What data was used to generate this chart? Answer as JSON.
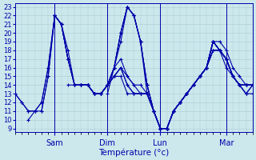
{
  "xlabel": "Température (°c)",
  "ylim": [
    9,
    23
  ],
  "xlim": [
    0,
    108
  ],
  "yticks": [
    9,
    10,
    11,
    12,
    13,
    14,
    15,
    16,
    17,
    18,
    19,
    20,
    21,
    22,
    23
  ],
  "day_positions": [
    18,
    42,
    66,
    96
  ],
  "day_labels": [
    "Sam",
    "Dim",
    "Lun",
    "Mar"
  ],
  "bg_color": "#cce8ec",
  "grid_color": "#a8cdd4",
  "line_color": "#0000aa",
  "series": [
    {
      "start": 0,
      "points": [
        [
          0,
          13
        ],
        [
          3,
          12
        ],
        [
          6,
          11
        ],
        [
          9,
          11
        ],
        [
          12,
          12
        ],
        [
          15,
          16
        ],
        [
          18,
          22
        ],
        [
          21,
          21
        ],
        [
          24,
          18
        ],
        [
          27,
          14
        ],
        [
          30,
          14
        ],
        [
          33,
          14
        ],
        [
          36,
          13
        ],
        [
          39,
          13
        ],
        [
          42,
          14
        ],
        [
          45,
          16
        ],
        [
          48,
          17
        ],
        [
          51,
          15
        ],
        [
          54,
          14
        ],
        [
          57,
          13
        ],
        [
          60,
          13
        ],
        [
          63,
          11
        ],
        [
          66,
          9
        ],
        [
          69,
          9
        ],
        [
          72,
          11
        ],
        [
          75,
          12
        ],
        [
          78,
          13
        ],
        [
          81,
          14
        ],
        [
          84,
          15
        ],
        [
          87,
          16
        ],
        [
          90,
          19
        ],
        [
          93,
          19
        ],
        [
          96,
          18
        ],
        [
          99,
          16
        ],
        [
          102,
          15
        ],
        [
          105,
          14
        ],
        [
          108,
          14
        ]
      ]
    },
    {
      "start": 0,
      "points": [
        [
          0,
          13
        ],
        [
          3,
          12
        ],
        [
          6,
          11
        ],
        [
          9,
          11
        ],
        [
          12,
          12
        ],
        [
          15,
          16
        ],
        [
          18,
          22
        ],
        [
          21,
          21
        ],
        [
          24,
          17
        ],
        [
          27,
          14
        ],
        [
          30,
          14
        ],
        [
          33,
          14
        ],
        [
          36,
          13
        ],
        [
          39,
          13
        ],
        [
          42,
          14
        ],
        [
          45,
          15
        ],
        [
          48,
          16
        ],
        [
          51,
          14
        ],
        [
          54,
          13
        ],
        [
          57,
          13
        ],
        [
          60,
          13
        ],
        [
          63,
          11
        ],
        [
          66,
          9
        ],
        [
          69,
          9
        ],
        [
          72,
          11
        ],
        [
          75,
          12
        ],
        [
          78,
          13
        ],
        [
          81,
          14
        ],
        [
          84,
          15
        ],
        [
          87,
          16
        ],
        [
          90,
          18
        ],
        [
          93,
          18
        ],
        [
          96,
          17
        ],
        [
          99,
          15
        ],
        [
          102,
          14
        ],
        [
          105,
          13
        ],
        [
          108,
          14
        ]
      ]
    },
    {
      "start": 6,
      "points": [
        [
          6,
          10
        ],
        [
          9,
          11
        ],
        [
          12,
          11
        ],
        [
          15,
          15
        ],
        [
          18,
          22
        ],
        [
          21,
          21
        ],
        [
          24,
          17
        ],
        [
          27,
          14
        ],
        [
          30,
          14
        ],
        [
          33,
          14
        ],
        [
          36,
          13
        ],
        [
          39,
          13
        ],
        [
          42,
          14
        ],
        [
          45,
          15
        ],
        [
          48,
          16
        ],
        [
          51,
          14
        ],
        [
          54,
          13
        ],
        [
          57,
          13
        ],
        [
          60,
          13
        ],
        [
          63,
          11
        ],
        [
          66,
          9
        ],
        [
          69,
          9
        ],
        [
          72,
          11
        ],
        [
          75,
          12
        ],
        [
          78,
          13
        ],
        [
          81,
          14
        ],
        [
          84,
          15
        ],
        [
          87,
          16
        ],
        [
          90,
          18
        ],
        [
          93,
          18
        ],
        [
          96,
          17
        ],
        [
          99,
          15
        ],
        [
          102,
          14
        ],
        [
          105,
          13
        ],
        [
          108,
          14
        ]
      ]
    },
    {
      "start": 12,
      "points": [
        [
          12,
          11
        ],
        [
          15,
          15
        ],
        [
          18,
          22
        ],
        [
          21,
          21
        ],
        [
          24,
          17
        ],
        [
          27,
          14
        ],
        [
          30,
          14
        ],
        [
          33,
          14
        ],
        [
          36,
          13
        ],
        [
          39,
          13
        ],
        [
          42,
          14
        ],
        [
          45,
          15
        ],
        [
          48,
          15
        ],
        [
          51,
          13
        ],
        [
          54,
          13
        ],
        [
          57,
          13
        ],
        [
          60,
          13
        ],
        [
          63,
          11
        ],
        [
          66,
          9
        ],
        [
          69,
          9
        ],
        [
          72,
          11
        ],
        [
          75,
          12
        ],
        [
          78,
          13
        ],
        [
          81,
          14
        ],
        [
          84,
          15
        ],
        [
          87,
          16
        ],
        [
          90,
          18
        ],
        [
          93,
          18
        ],
        [
          96,
          16
        ],
        [
          99,
          15
        ],
        [
          102,
          14
        ],
        [
          105,
          13
        ],
        [
          108,
          13
        ]
      ]
    },
    {
      "start": 18,
      "points": [
        [
          18,
          22
        ],
        [
          21,
          21
        ],
        [
          24,
          17
        ],
        [
          27,
          14
        ],
        [
          30,
          14
        ],
        [
          33,
          14
        ],
        [
          36,
          13
        ],
        [
          39,
          13
        ],
        [
          42,
          14
        ],
        [
          45,
          15
        ],
        [
          48,
          16
        ],
        [
          51,
          15
        ],
        [
          54,
          14
        ],
        [
          57,
          14
        ],
        [
          60,
          13
        ],
        [
          63,
          11
        ],
        [
          66,
          9
        ],
        [
          69,
          9
        ],
        [
          72,
          11
        ],
        [
          75,
          12
        ],
        [
          78,
          13
        ],
        [
          81,
          14
        ],
        [
          84,
          15
        ],
        [
          87,
          16
        ],
        [
          90,
          19
        ],
        [
          93,
          18
        ],
        [
          96,
          17
        ],
        [
          99,
          15
        ],
        [
          102,
          14
        ],
        [
          105,
          14
        ],
        [
          108,
          14
        ]
      ]
    },
    {
      "start": 24,
      "points": [
        [
          24,
          14
        ],
        [
          27,
          14
        ],
        [
          30,
          14
        ],
        [
          33,
          14
        ],
        [
          36,
          13
        ],
        [
          39,
          13
        ],
        [
          42,
          14
        ],
        [
          45,
          16
        ],
        [
          48,
          19
        ],
        [
          51,
          23
        ],
        [
          54,
          22
        ],
        [
          57,
          19
        ],
        [
          60,
          14
        ],
        [
          63,
          11
        ],
        [
          66,
          9
        ],
        [
          69,
          9
        ],
        [
          72,
          11
        ],
        [
          75,
          12
        ],
        [
          78,
          13
        ],
        [
          81,
          14
        ],
        [
          84,
          15
        ],
        [
          87,
          16
        ],
        [
          90,
          19
        ],
        [
          93,
          18
        ],
        [
          96,
          17
        ],
        [
          99,
          15
        ],
        [
          102,
          14
        ],
        [
          105,
          14
        ],
        [
          108,
          14
        ]
      ]
    },
    {
      "start": 30,
      "points": [
        [
          30,
          14
        ],
        [
          33,
          14
        ],
        [
          36,
          13
        ],
        [
          39,
          13
        ],
        [
          42,
          14
        ],
        [
          45,
          16
        ],
        [
          48,
          20
        ],
        [
          51,
          23
        ],
        [
          54,
          22
        ],
        [
          57,
          19
        ],
        [
          60,
          14
        ],
        [
          63,
          11
        ],
        [
          66,
          9
        ],
        [
          69,
          9
        ],
        [
          72,
          11
        ],
        [
          75,
          12
        ],
        [
          78,
          13
        ],
        [
          81,
          14
        ],
        [
          84,
          15
        ],
        [
          87,
          16
        ],
        [
          90,
          19
        ],
        [
          93,
          18
        ],
        [
          96,
          17
        ],
        [
          99,
          15
        ],
        [
          102,
          14
        ],
        [
          105,
          14
        ],
        [
          108,
          14
        ]
      ]
    },
    {
      "start": 36,
      "points": [
        [
          36,
          13
        ],
        [
          39,
          13
        ],
        [
          42,
          14
        ],
        [
          45,
          16
        ],
        [
          48,
          20
        ],
        [
          51,
          23
        ],
        [
          54,
          22
        ],
        [
          57,
          19
        ],
        [
          60,
          14
        ],
        [
          63,
          11
        ],
        [
          66,
          9
        ],
        [
          69,
          9
        ],
        [
          72,
          11
        ],
        [
          75,
          12
        ],
        [
          78,
          13
        ],
        [
          81,
          14
        ],
        [
          84,
          15
        ],
        [
          87,
          16
        ],
        [
          90,
          19
        ],
        [
          93,
          18
        ],
        [
          96,
          17
        ],
        [
          99,
          15
        ],
        [
          102,
          14
        ],
        [
          105,
          14
        ],
        [
          108,
          14
        ]
      ]
    },
    {
      "start": 42,
      "points": [
        [
          42,
          13
        ],
        [
          45,
          16
        ],
        [
          48,
          20
        ],
        [
          51,
          23
        ],
        [
          54,
          22
        ],
        [
          57,
          19
        ],
        [
          60,
          13
        ],
        [
          63,
          11
        ],
        [
          66,
          9
        ],
        [
          69,
          9
        ],
        [
          72,
          11
        ],
        [
          75,
          12
        ],
        [
          78,
          13
        ],
        [
          81,
          14
        ],
        [
          84,
          15
        ],
        [
          87,
          16
        ],
        [
          90,
          19
        ],
        [
          93,
          18
        ],
        [
          96,
          17
        ],
        [
          99,
          15
        ],
        [
          102,
          14
        ],
        [
          105,
          14
        ],
        [
          108,
          14
        ]
      ]
    }
  ]
}
